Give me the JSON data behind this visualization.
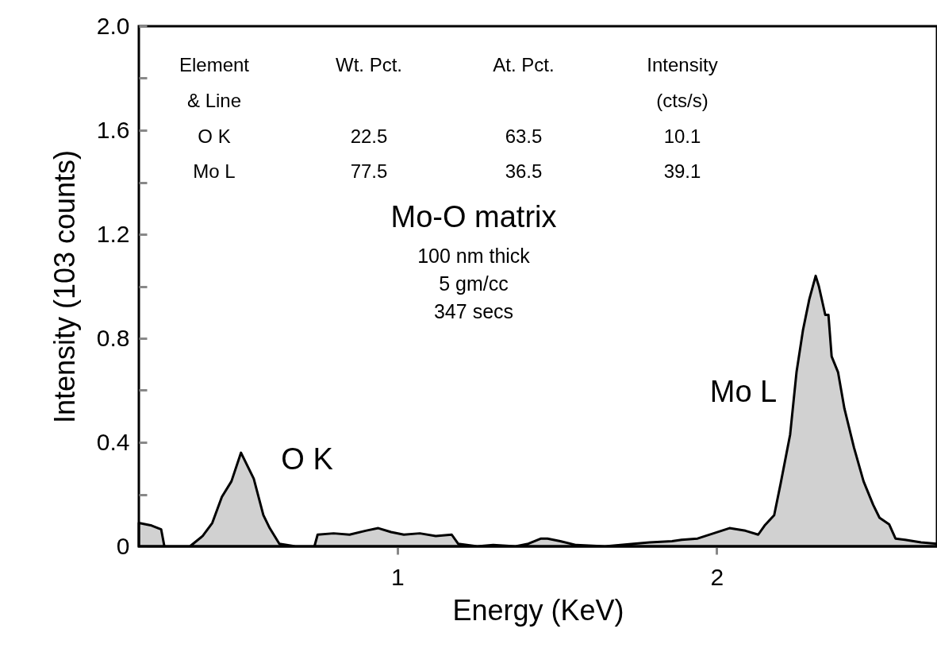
{
  "chart_data": {
    "type": "area",
    "xlabel": "Energy  (KeV)",
    "ylabel": "Intensity  (103 counts)",
    "xlim": [
      0.19,
      2.69
    ],
    "xticks": [
      1,
      2
    ],
    "ylim": [
      0,
      2
    ],
    "yticks": [
      0,
      {
        "value": 0.2,
        "label": null
      },
      0.4,
      {
        "value": 0.6,
        "label": null
      },
      0.8,
      {
        "value": 1.0,
        "label": null
      },
      1.2,
      {
        "value": 1.4,
        "label": null
      },
      1.6,
      {
        "value": 1.8,
        "label": null
      },
      {
        "value": 2,
        "label": "2.0"
      }
    ],
    "grid": false,
    "marker": "none",
    "x": [
      0.19,
      0.23,
      0.26,
      0.27,
      0.35,
      0.39,
      0.42,
      0.45,
      0.48,
      0.51,
      0.55,
      0.58,
      0.6,
      0.63,
      0.68,
      0.74,
      0.75,
      0.8,
      0.85,
      0.9,
      0.94,
      0.98,
      1.02,
      1.07,
      1.12,
      1.17,
      1.19,
      1.25,
      1.3,
      1.37,
      1.41,
      1.45,
      1.47,
      1.51,
      1.56,
      1.65,
      1.74,
      1.79,
      1.86,
      1.89,
      1.94,
      1.99,
      2.04,
      2.09,
      2.13,
      2.15,
      2.18,
      2.2,
      2.23,
      2.25,
      2.27,
      2.29,
      2.31,
      2.32,
      2.34,
      2.35,
      2.36,
      2.38,
      2.4,
      2.43,
      2.46,
      2.49,
      2.51,
      2.54,
      2.56,
      2.59,
      2.64,
      2.69
    ],
    "series": [
      {
        "color": "#000000",
        "values": [
          0.09,
          0.08,
          0.065,
          0,
          0,
          0.04,
          0.09,
          0.19,
          0.25,
          0.36,
          0.26,
          0.12,
          0.07,
          0.01,
          0,
          0,
          0.045,
          0.05,
          0.045,
          0.06,
          0.07,
          0.055,
          0.045,
          0.05,
          0.04,
          0.045,
          0.01,
          0,
          0.005,
          0,
          0.01,
          0.03,
          0.03,
          0.02,
          0.005,
          0,
          0.01,
          0.015,
          0.02,
          0.025,
          0.03,
          0.05,
          0.07,
          0.06,
          0.045,
          0.08,
          0.12,
          0.24,
          0.43,
          0.67,
          0.83,
          0.95,
          1.04,
          1.0,
          0.89,
          0.89,
          0.73,
          0.67,
          0.53,
          0.38,
          0.25,
          0.16,
          0.11,
          0.085,
          0.03,
          0.025,
          0.015,
          0.01
        ]
      }
    ],
    "annotations": [
      "Element",
      "Wt. Pct.",
      "At. Pct.",
      "Intensity",
      "& Line",
      "(cts/s)",
      "O K",
      "22.5",
      "63.5",
      "10.1",
      "Mo L",
      "77.5",
      "36.5",
      "39.1",
      "Mo-O matrix",
      "100 nm thick",
      "5 gm/cc",
      "347 secs",
      "O K",
      "Mo L"
    ]
  }
}
